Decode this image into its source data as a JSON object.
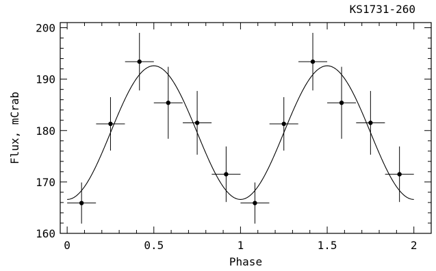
{
  "chart_data": {
    "type": "scatter",
    "title": "KS1731-260",
    "xlabel": "Phase",
    "ylabel": "Flux, mCrab",
    "xlim": [
      -0.04,
      2.1
    ],
    "ylim": [
      160,
      201
    ],
    "x_ticks": [
      0,
      0.5,
      1,
      1.5,
      2
    ],
    "x_tick_labels": [
      "0",
      "0.5",
      "1",
      "1.5",
      "2"
    ],
    "y_ticks": [
      160,
      170,
      180,
      190,
      200
    ],
    "y_tick_labels": [
      "160",
      "170",
      "180",
      "190",
      "200"
    ],
    "grid": false,
    "legend": "none",
    "series": [
      {
        "kind": "points-with-errorbars",
        "x": [
          0.083,
          0.25,
          0.417,
          0.583,
          0.75,
          0.917,
          1.083,
          1.25,
          1.417,
          1.583,
          1.75,
          1.917
        ],
        "x_err": [
          0.083,
          0.083,
          0.083,
          0.083,
          0.083,
          0.083,
          0.083,
          0.083,
          0.083,
          0.083,
          0.083,
          0.083
        ],
        "y": [
          165.9,
          181.3,
          193.4,
          185.4,
          181.5,
          171.5,
          165.9,
          181.3,
          193.4,
          185.4,
          181.5,
          171.5
        ],
        "y_err": [
          4.0,
          5.2,
          5.6,
          7.0,
          6.2,
          5.4,
          4.0,
          5.2,
          5.6,
          7.0,
          6.2,
          5.4
        ]
      },
      {
        "kind": "sine-fit",
        "mean": 179.6,
        "amplitude": 13.0,
        "period": 1.0,
        "peak_phase": 0.5
      }
    ]
  }
}
